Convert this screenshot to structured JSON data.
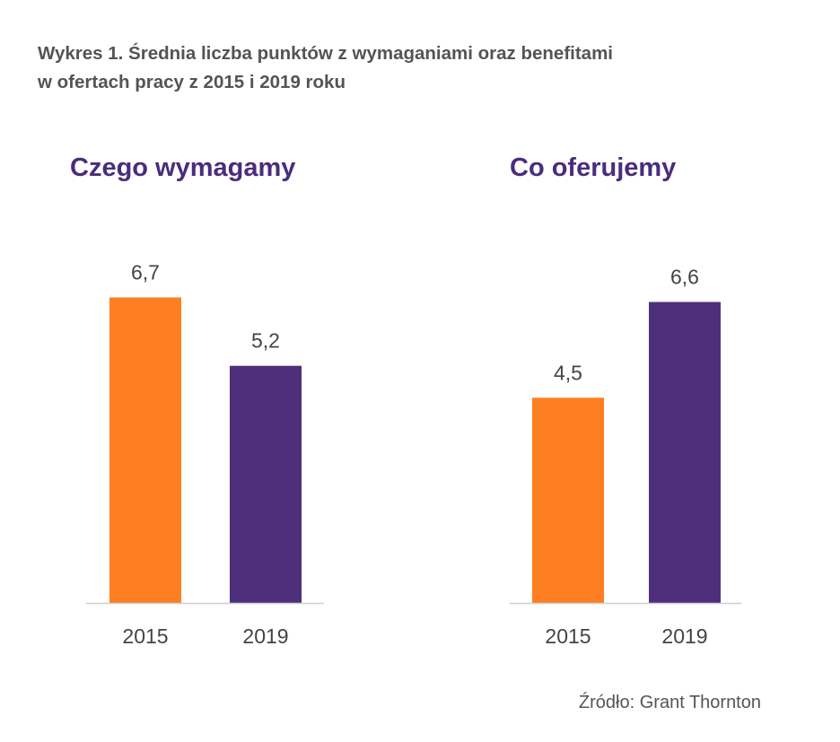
{
  "title_line1": "Wykres 1. Średnia liczba punktów z wymaganiami oraz benefitami",
  "title_line2": "w ofertach pracy z 2015 i 2019 roku",
  "source": "Źródło: Grant Thornton",
  "colors": {
    "year_2015": "#fd7f22",
    "year_2019": "#4e2f7b",
    "panel_title": "#4b2c7c",
    "axis": "#cfcfcf"
  },
  "chart_data": [
    {
      "type": "bar",
      "title": "Czego wymagamy",
      "categories": [
        "2015",
        "2019"
      ],
      "values": [
        6.7,
        5.2
      ],
      "value_labels": [
        "6,7",
        "5,2"
      ],
      "ylim": [
        0,
        7.3
      ],
      "grid": false
    },
    {
      "type": "bar",
      "title": "Co oferujemy",
      "categories": [
        "2015",
        "2019"
      ],
      "values": [
        4.5,
        6.6
      ],
      "value_labels": [
        "4,5",
        "6,6"
      ],
      "ylim": [
        0,
        7.3
      ],
      "grid": false
    }
  ]
}
